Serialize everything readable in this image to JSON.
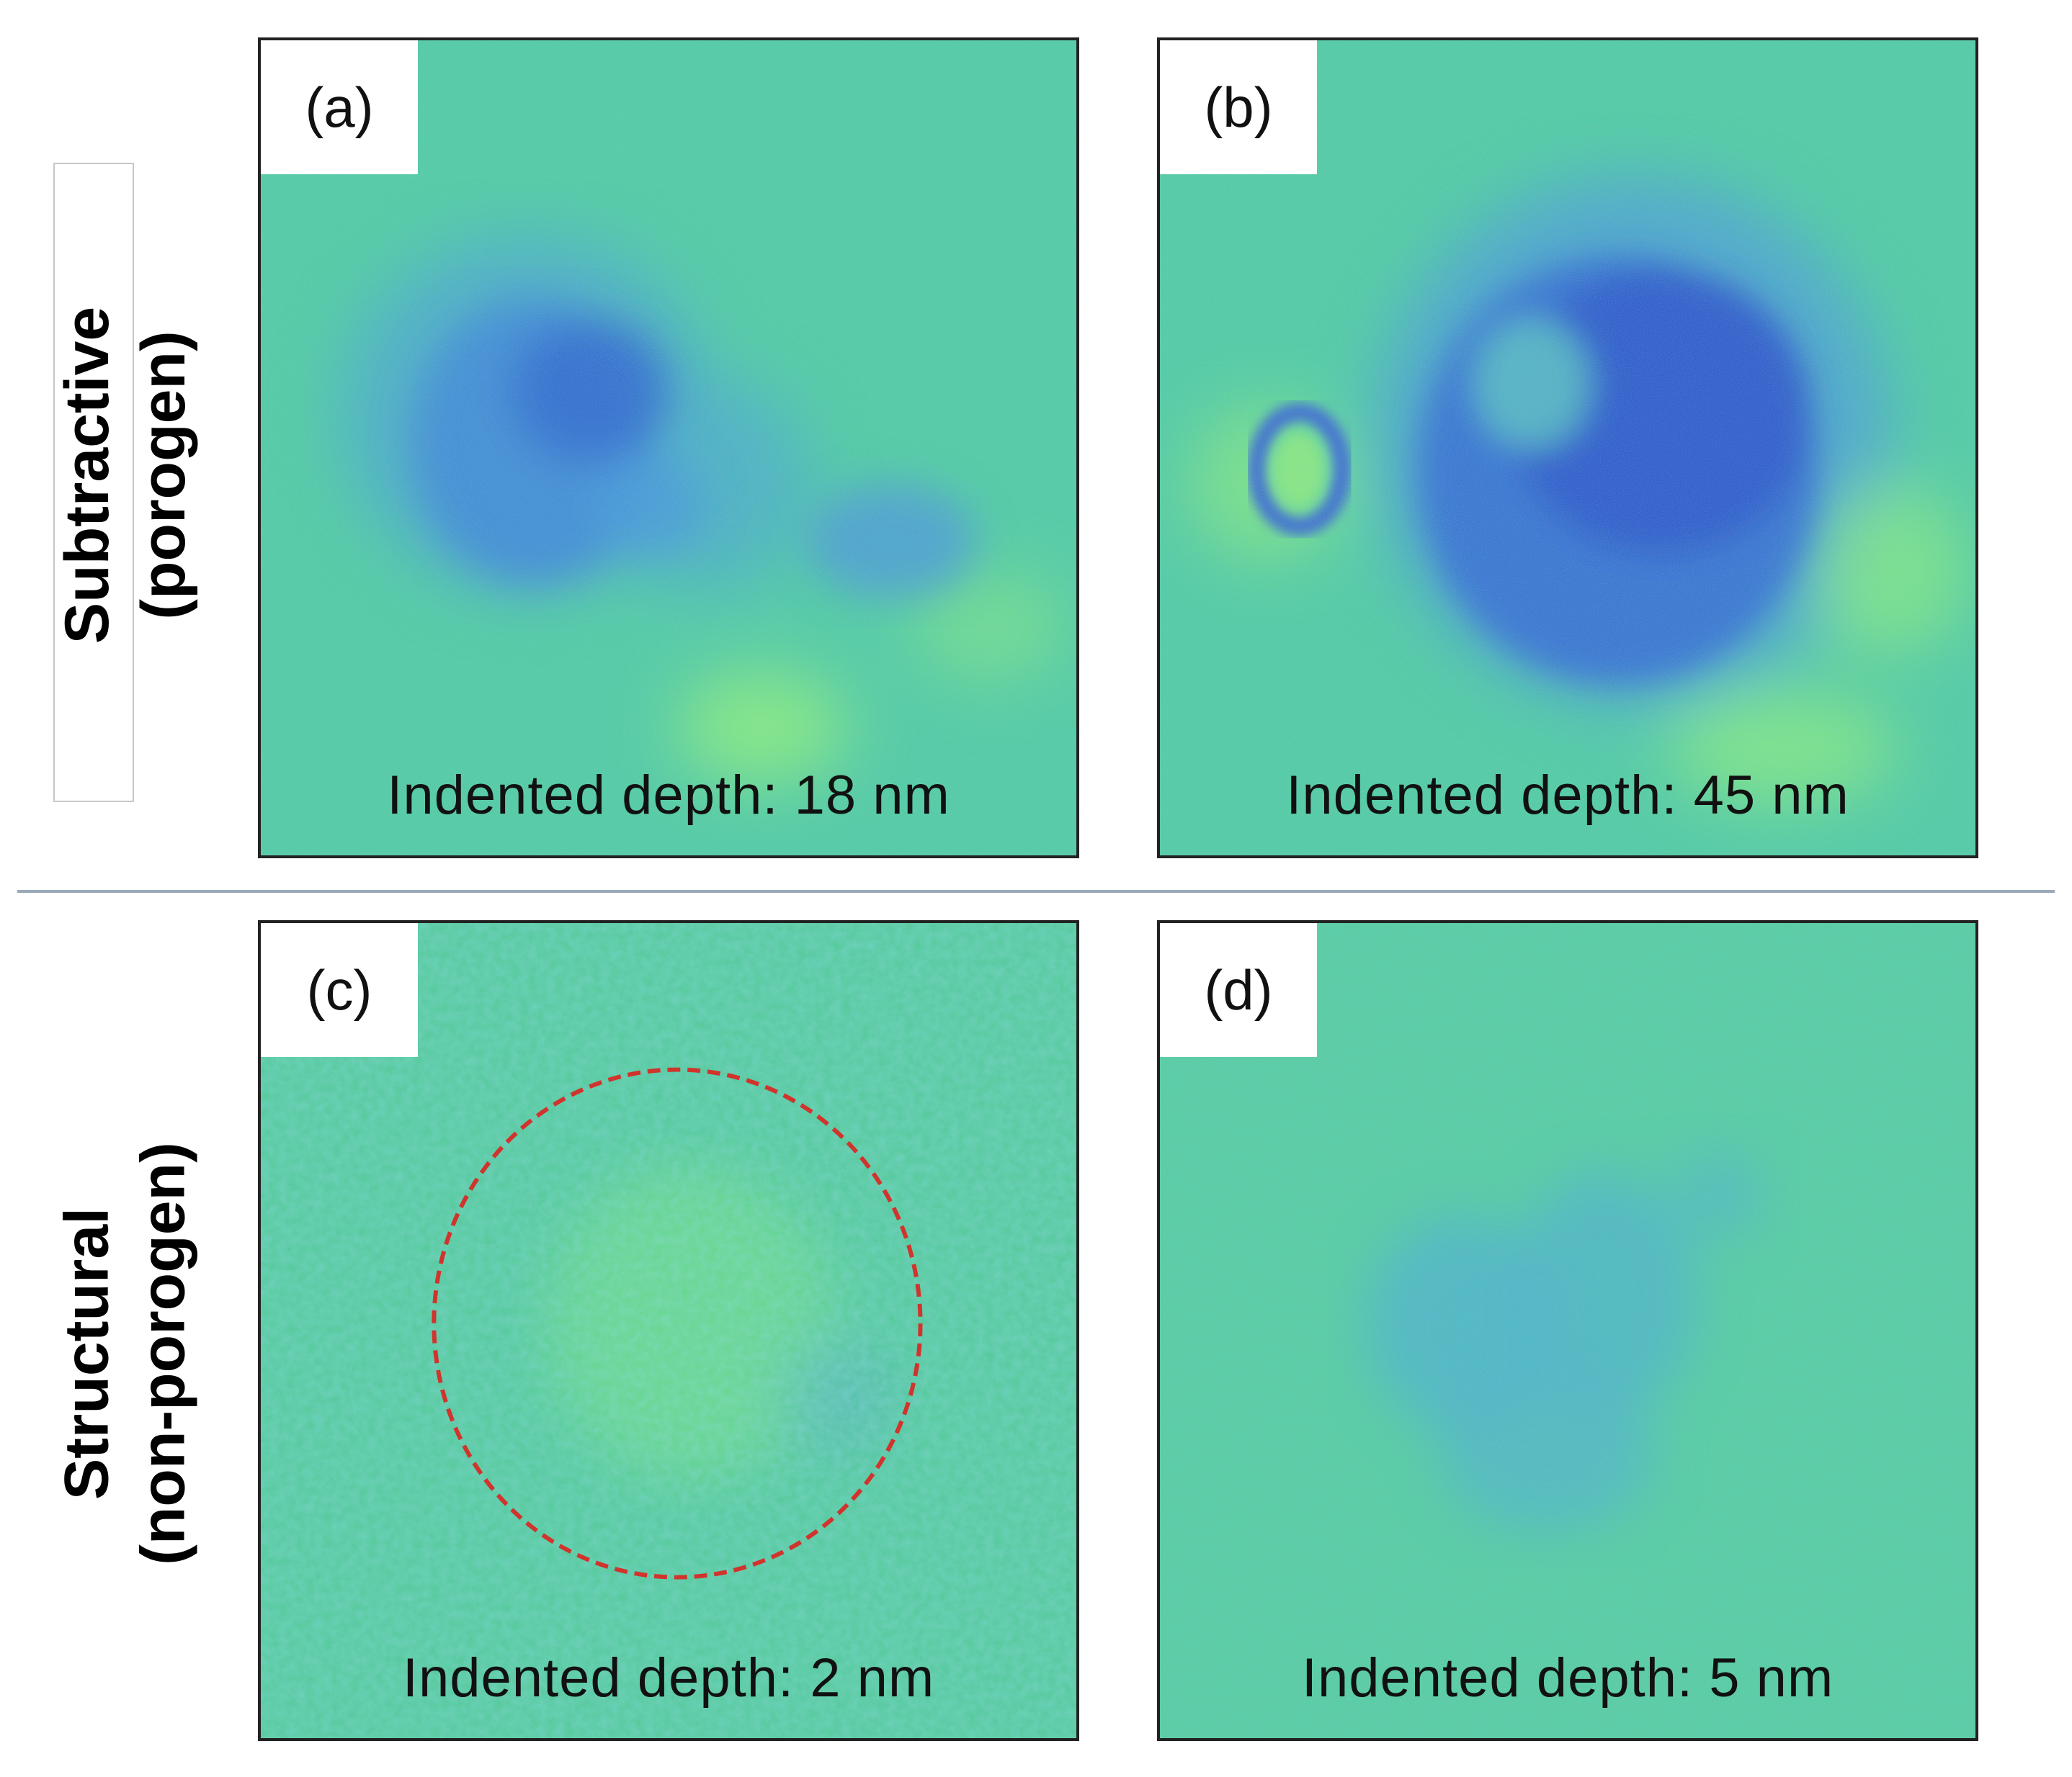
{
  "rows": [
    {
      "label_line1": "Subtractive",
      "label_line2": "(porogen)"
    },
    {
      "label_line1": "Structural",
      "label_line2": "(non-porogen)"
    }
  ],
  "panels": [
    {
      "tag": "(a)",
      "caption": "Indented depth: 18 nm"
    },
    {
      "tag": "(b)",
      "caption": "Indented depth: 45 nm"
    },
    {
      "tag": "(c)",
      "caption": "Indented depth: 2 nm"
    },
    {
      "tag": "(d)",
      "caption": "Indented depth: 5 nm"
    }
  ],
  "colors": {
    "background_field": "#52c89a",
    "pore_dark": "#2b4fc8",
    "pore_mid": "#3f86d6",
    "bright_field": "#9df06a",
    "highlight_circle": "#d0342c"
  }
}
